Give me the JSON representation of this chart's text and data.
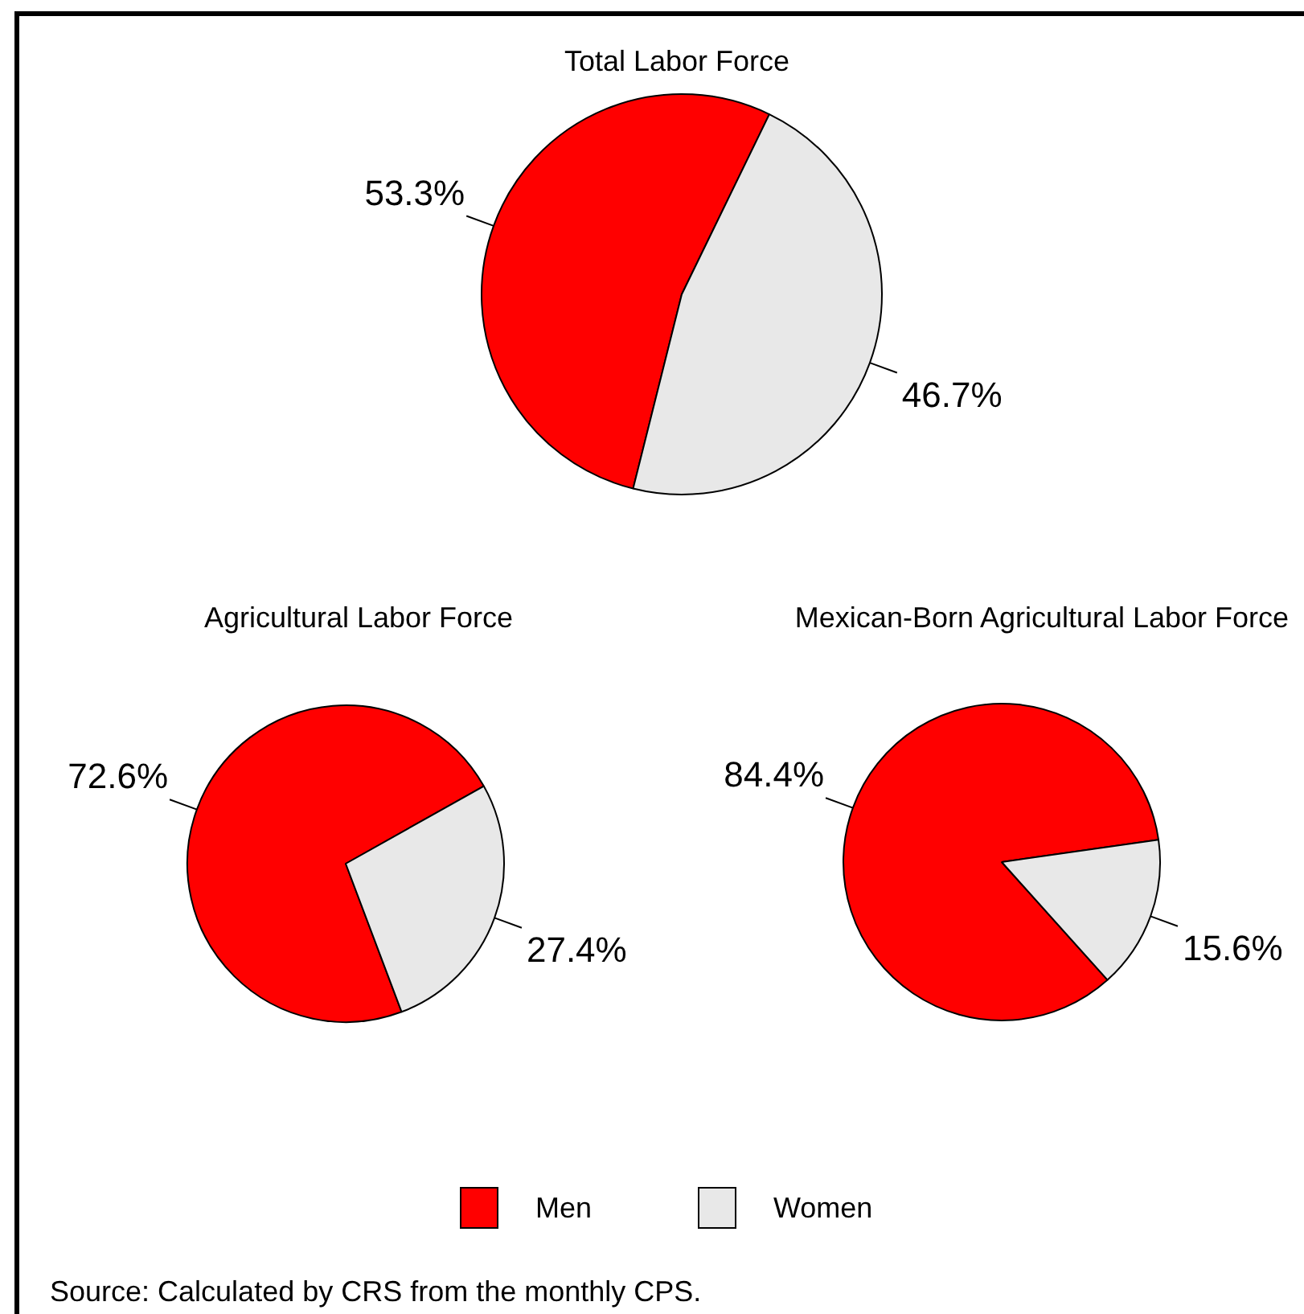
{
  "chart_data": [
    {
      "type": "pie",
      "title": "Total Labor Force",
      "categories": [
        "Men",
        "Women"
      ],
      "values": [
        53.3,
        46.7
      ],
      "colors": [
        "#ff0000",
        "#e8e8e8"
      ],
      "value_labels": [
        "53.3%",
        "46.7%"
      ],
      "legend": "bottom",
      "annotations": [
        "Source: Calculated by CRS from the monthly CPS."
      ]
    },
    {
      "type": "pie",
      "title": "Agricultural Labor Force",
      "categories": [
        null,
        null
      ],
      "values": [
        72.6,
        27.4
      ],
      "colors": [
        "#ff0000",
        "#e8e8e8"
      ],
      "value_labels": [
        "72.6%",
        "27.4%"
      ]
    },
    {
      "type": "pie",
      "title": "Mexican-Born Agricultural Labor Force",
      "categories": [
        null,
        null
      ],
      "values": [
        84.4,
        15.6
      ],
      "colors": [
        "#ff0000",
        "#e8e8e8"
      ],
      "value_labels": [
        "84.4%",
        "15.6%"
      ]
    }
  ]
}
